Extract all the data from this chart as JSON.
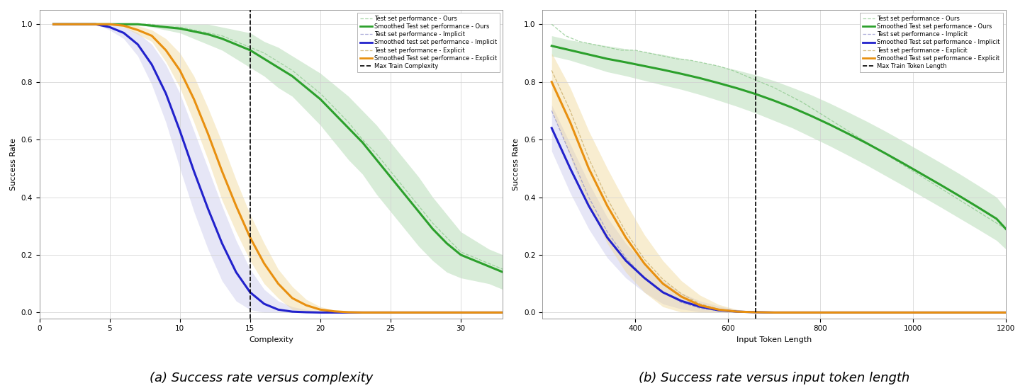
{
  "chart_a": {
    "title": "(a) Success rate versus complexity",
    "xlabel": "Complexity",
    "ylabel": "Success Rate",
    "xlim": [
      0,
      33
    ],
    "ylim": [
      -0.02,
      1.05
    ],
    "xticks": [
      0,
      5,
      10,
      15,
      20,
      25,
      30
    ],
    "yticks": [
      0.0,
      0.2,
      0.4,
      0.6,
      0.8,
      1.0
    ],
    "vline_x": 15,
    "green_smooth_x": [
      1,
      2,
      3,
      4,
      5,
      6,
      7,
      8,
      9,
      10,
      11,
      12,
      13,
      14,
      15,
      16,
      17,
      18,
      19,
      20,
      21,
      22,
      23,
      24,
      25,
      26,
      27,
      28,
      29,
      30,
      31,
      32,
      33
    ],
    "green_smooth_y": [
      1.0,
      1.0,
      1.0,
      1.0,
      1.0,
      1.0,
      1.0,
      0.995,
      0.99,
      0.985,
      0.975,
      0.965,
      0.95,
      0.93,
      0.91,
      0.88,
      0.85,
      0.82,
      0.78,
      0.74,
      0.69,
      0.64,
      0.59,
      0.53,
      0.47,
      0.41,
      0.35,
      0.29,
      0.24,
      0.2,
      0.18,
      0.16,
      0.14
    ],
    "green_raw_x": [
      1,
      2,
      3,
      4,
      5,
      6,
      7,
      8,
      9,
      10,
      11,
      12,
      13,
      14,
      15,
      16,
      17,
      18,
      19,
      20,
      21,
      22,
      23,
      24,
      25,
      26,
      27,
      28,
      29,
      30,
      31,
      32,
      33
    ],
    "green_raw_y": [
      1.0,
      1.0,
      1.0,
      1.0,
      1.0,
      1.0,
      1.0,
      1.0,
      0.99,
      0.99,
      0.98,
      0.97,
      0.96,
      0.94,
      0.92,
      0.9,
      0.87,
      0.84,
      0.8,
      0.76,
      0.71,
      0.66,
      0.6,
      0.55,
      0.49,
      0.43,
      0.37,
      0.31,
      0.26,
      0.21,
      0.19,
      0.17,
      0.15
    ],
    "green_upper": [
      1.0,
      1.0,
      1.0,
      1.0,
      1.0,
      1.0,
      1.0,
      1.0,
      1.0,
      1.0,
      1.0,
      1.0,
      0.99,
      0.98,
      0.97,
      0.94,
      0.92,
      0.89,
      0.86,
      0.83,
      0.79,
      0.75,
      0.7,
      0.65,
      0.59,
      0.53,
      0.47,
      0.4,
      0.34,
      0.28,
      0.25,
      0.22,
      0.2
    ],
    "green_lower": [
      1.0,
      1.0,
      1.0,
      1.0,
      1.0,
      1.0,
      1.0,
      0.99,
      0.98,
      0.97,
      0.95,
      0.93,
      0.91,
      0.88,
      0.85,
      0.82,
      0.78,
      0.75,
      0.7,
      0.65,
      0.59,
      0.53,
      0.48,
      0.41,
      0.35,
      0.29,
      0.23,
      0.18,
      0.14,
      0.12,
      0.11,
      0.1,
      0.08
    ],
    "blue_smooth_x": [
      1,
      2,
      3,
      4,
      5,
      6,
      7,
      8,
      9,
      10,
      11,
      12,
      13,
      14,
      15,
      16,
      17,
      18,
      19,
      20,
      21,
      22,
      23,
      24,
      25,
      26,
      27,
      28,
      29,
      30,
      31,
      32,
      33
    ],
    "blue_smooth_y": [
      1.0,
      1.0,
      1.0,
      1.0,
      0.99,
      0.97,
      0.93,
      0.86,
      0.76,
      0.63,
      0.49,
      0.36,
      0.24,
      0.14,
      0.07,
      0.03,
      0.01,
      0.003,
      0.001,
      0.0,
      0.0,
      0.0,
      0.0,
      0.0,
      0.0,
      0.0,
      0.0,
      0.0,
      0.0,
      0.0,
      0.0,
      0.0,
      0.0
    ],
    "blue_raw_x": [
      1,
      2,
      3,
      4,
      5,
      6,
      7,
      8,
      9,
      10,
      11,
      12,
      13,
      14,
      15,
      16,
      17,
      18,
      19,
      20,
      21,
      22,
      23,
      24,
      25,
      26,
      27,
      28,
      29,
      30,
      31,
      32,
      33
    ],
    "blue_raw_y": [
      1.0,
      1.0,
      1.0,
      1.0,
      0.99,
      0.97,
      0.93,
      0.86,
      0.76,
      0.63,
      0.49,
      0.36,
      0.24,
      0.14,
      0.07,
      0.03,
      0.01,
      0.003,
      0.001,
      0.0,
      0.0,
      0.0,
      0.0,
      0.0,
      0.0,
      0.0,
      0.0,
      0.0,
      0.0,
      0.0,
      0.0,
      0.0,
      0.0
    ],
    "blue_upper": [
      1.0,
      1.0,
      1.0,
      1.0,
      1.0,
      0.99,
      0.97,
      0.93,
      0.86,
      0.76,
      0.63,
      0.5,
      0.37,
      0.25,
      0.15,
      0.08,
      0.04,
      0.02,
      0.01,
      0.003,
      0.001,
      0.0,
      0.0,
      0.0,
      0.0,
      0.0,
      0.0,
      0.0,
      0.0,
      0.0,
      0.0,
      0.0,
      0.0
    ],
    "blue_lower": [
      1.0,
      1.0,
      1.0,
      1.0,
      0.98,
      0.95,
      0.89,
      0.79,
      0.66,
      0.5,
      0.35,
      0.22,
      0.11,
      0.04,
      0.01,
      0.0,
      0.0,
      0.0,
      0.0,
      0.0,
      0.0,
      0.0,
      0.0,
      0.0,
      0.0,
      0.0,
      0.0,
      0.0,
      0.0,
      0.0,
      0.0,
      0.0,
      0.0
    ],
    "orange_smooth_x": [
      1,
      2,
      3,
      4,
      5,
      6,
      7,
      8,
      9,
      10,
      11,
      12,
      13,
      14,
      15,
      16,
      17,
      18,
      19,
      20,
      21,
      22,
      23,
      24,
      25,
      26,
      27,
      28,
      29,
      30,
      31,
      32,
      33
    ],
    "orange_smooth_y": [
      1.0,
      1.0,
      1.0,
      1.0,
      1.0,
      0.995,
      0.98,
      0.96,
      0.91,
      0.84,
      0.74,
      0.62,
      0.49,
      0.37,
      0.26,
      0.17,
      0.1,
      0.05,
      0.025,
      0.01,
      0.004,
      0.001,
      0.0,
      0.0,
      0.0,
      0.0,
      0.0,
      0.0,
      0.0,
      0.0,
      0.0,
      0.0,
      0.0
    ],
    "orange_raw_x": [
      1,
      2,
      3,
      4,
      5,
      6,
      7,
      8,
      9,
      10,
      11,
      12,
      13,
      14,
      15,
      16,
      17,
      18,
      19,
      20,
      21,
      22,
      23,
      24,
      25,
      26,
      27,
      28,
      29,
      30,
      31,
      32,
      33
    ],
    "orange_raw_y": [
      1.0,
      1.0,
      1.0,
      1.0,
      1.0,
      0.995,
      0.98,
      0.96,
      0.91,
      0.84,
      0.74,
      0.62,
      0.49,
      0.37,
      0.26,
      0.17,
      0.1,
      0.05,
      0.025,
      0.01,
      0.004,
      0.001,
      0.0,
      0.0,
      0.0,
      0.0,
      0.0,
      0.0,
      0.0,
      0.0,
      0.0,
      0.0,
      0.0
    ],
    "orange_upper": [
      1.0,
      1.0,
      1.0,
      1.0,
      1.0,
      1.0,
      0.995,
      0.98,
      0.95,
      0.9,
      0.82,
      0.71,
      0.59,
      0.46,
      0.34,
      0.24,
      0.15,
      0.09,
      0.045,
      0.02,
      0.008,
      0.002,
      0.0,
      0.0,
      0.0,
      0.0,
      0.0,
      0.0,
      0.0,
      0.0,
      0.0,
      0.0,
      0.0
    ],
    "orange_lower": [
      1.0,
      1.0,
      1.0,
      1.0,
      1.0,
      0.99,
      0.965,
      0.94,
      0.87,
      0.78,
      0.66,
      0.53,
      0.39,
      0.28,
      0.18,
      0.1,
      0.05,
      0.01,
      0.005,
      0.002,
      0.0,
      0.0,
      0.0,
      0.0,
      0.0,
      0.0,
      0.0,
      0.0,
      0.0,
      0.0,
      0.0,
      0.0,
      0.0
    ]
  },
  "chart_b": {
    "title": "(b) Success rate versus input token length",
    "xlabel": "Input Token Length",
    "ylabel": "Success Rate",
    "xlim": [
      200,
      1200
    ],
    "ylim": [
      -0.02,
      1.05
    ],
    "xticks": [
      400,
      600,
      800,
      1000,
      1200
    ],
    "yticks": [
      0.0,
      0.2,
      0.4,
      0.6,
      0.8,
      1.0
    ],
    "vline_x": 660,
    "green_smooth_x": [
      220,
      260,
      300,
      340,
      380,
      420,
      460,
      500,
      540,
      580,
      620,
      660,
      700,
      740,
      780,
      820,
      860,
      900,
      940,
      980,
      1020,
      1060,
      1100,
      1140,
      1180,
      1200
    ],
    "green_smooth_y": [
      0.925,
      0.91,
      0.895,
      0.88,
      0.868,
      0.855,
      0.842,
      0.828,
      0.813,
      0.796,
      0.778,
      0.758,
      0.735,
      0.71,
      0.682,
      0.652,
      0.62,
      0.587,
      0.552,
      0.516,
      0.479,
      0.442,
      0.404,
      0.365,
      0.325,
      0.29
    ],
    "green_raw_x": [
      220,
      250,
      280,
      310,
      340,
      370,
      400,
      430,
      460,
      490,
      520,
      550,
      580,
      610,
      640,
      670,
      700,
      730,
      760,
      790,
      820,
      850,
      880,
      910,
      940,
      970,
      1000,
      1030,
      1060,
      1090,
      1120,
      1150,
      1180,
      1200
    ],
    "green_raw_y": [
      1.0,
      0.96,
      0.94,
      0.93,
      0.92,
      0.91,
      0.91,
      0.9,
      0.89,
      0.88,
      0.875,
      0.865,
      0.855,
      0.84,
      0.82,
      0.8,
      0.78,
      0.755,
      0.73,
      0.7,
      0.67,
      0.64,
      0.61,
      0.58,
      0.55,
      0.52,
      0.49,
      0.46,
      0.43,
      0.4,
      0.37,
      0.34,
      0.31,
      0.29
    ],
    "green_upper": [
      0.96,
      0.945,
      0.935,
      0.925,
      0.915,
      0.905,
      0.895,
      0.882,
      0.87,
      0.856,
      0.841,
      0.824,
      0.804,
      0.78,
      0.755,
      0.726,
      0.695,
      0.663,
      0.629,
      0.593,
      0.556,
      0.519,
      0.481,
      0.441,
      0.4,
      0.36
    ],
    "green_lower": [
      0.89,
      0.875,
      0.855,
      0.835,
      0.821,
      0.805,
      0.789,
      0.774,
      0.756,
      0.736,
      0.715,
      0.692,
      0.666,
      0.64,
      0.609,
      0.578,
      0.545,
      0.511,
      0.475,
      0.439,
      0.402,
      0.365,
      0.327,
      0.289,
      0.25,
      0.22
    ],
    "blue_smooth_x": [
      220,
      260,
      300,
      340,
      380,
      420,
      460,
      500,
      540,
      580,
      620,
      660,
      700,
      740,
      780,
      820,
      860,
      900,
      940,
      980,
      1020,
      1060,
      1100,
      1140,
      1180,
      1200
    ],
    "blue_smooth_y": [
      0.64,
      0.5,
      0.37,
      0.26,
      0.18,
      0.12,
      0.07,
      0.04,
      0.02,
      0.008,
      0.003,
      0.001,
      0.0,
      0.0,
      0.0,
      0.0,
      0.0,
      0.0,
      0.0,
      0.0,
      0.0,
      0.0,
      0.0,
      0.0,
      0.0,
      0.0
    ],
    "blue_raw_x": [
      220,
      260,
      300,
      340,
      380,
      420,
      460,
      500,
      540,
      580,
      620,
      660,
      700,
      740,
      780
    ],
    "blue_raw_y": [
      0.7,
      0.55,
      0.4,
      0.28,
      0.19,
      0.12,
      0.07,
      0.035,
      0.015,
      0.006,
      0.002,
      0.001,
      0.0,
      0.0,
      0.0
    ],
    "blue_upper": [
      0.72,
      0.585,
      0.45,
      0.33,
      0.24,
      0.17,
      0.11,
      0.068,
      0.04,
      0.022,
      0.01,
      0.004,
      0.001,
      0.0,
      0.0,
      0.0,
      0.0,
      0.0,
      0.0,
      0.0,
      0.0,
      0.0,
      0.0,
      0.0,
      0.0,
      0.0
    ],
    "blue_lower": [
      0.56,
      0.415,
      0.29,
      0.19,
      0.12,
      0.07,
      0.03,
      0.012,
      0.002,
      0.0,
      0.0,
      0.0,
      0.0,
      0.0,
      0.0,
      0.0,
      0.0,
      0.0,
      0.0,
      0.0,
      0.0,
      0.0,
      0.0,
      0.0,
      0.0,
      0.0
    ],
    "orange_smooth_x": [
      220,
      260,
      300,
      340,
      380,
      420,
      460,
      500,
      540,
      580,
      620,
      660,
      700,
      740,
      780,
      820,
      860,
      900,
      940,
      980,
      1020,
      1060,
      1100,
      1140,
      1180,
      1200
    ],
    "orange_smooth_y": [
      0.8,
      0.66,
      0.5,
      0.37,
      0.26,
      0.17,
      0.1,
      0.055,
      0.025,
      0.01,
      0.003,
      0.001,
      0.0,
      0.0,
      0.0,
      0.0,
      0.0,
      0.0,
      0.0,
      0.0,
      0.0,
      0.0,
      0.0,
      0.0,
      0.0,
      0.0
    ],
    "orange_raw_x": [
      220,
      260,
      300,
      340,
      380,
      420,
      460,
      500,
      540,
      580,
      620,
      660,
      700,
      740,
      780
    ],
    "orange_raw_y": [
      0.84,
      0.7,
      0.535,
      0.395,
      0.28,
      0.185,
      0.115,
      0.065,
      0.03,
      0.012,
      0.004,
      0.001,
      0.0,
      0.0,
      0.0
    ],
    "orange_upper": [
      0.9,
      0.78,
      0.63,
      0.5,
      0.38,
      0.27,
      0.18,
      0.11,
      0.06,
      0.028,
      0.01,
      0.003,
      0.001,
      0.0,
      0.0,
      0.0,
      0.0,
      0.0,
      0.0,
      0.0,
      0.0,
      0.0,
      0.0,
      0.0,
      0.0,
      0.0
    ],
    "orange_lower": [
      0.7,
      0.54,
      0.37,
      0.24,
      0.14,
      0.07,
      0.02,
      0.001,
      0.0,
      0.0,
      0.0,
      0.0,
      0.0,
      0.0,
      0.0,
      0.0,
      0.0,
      0.0,
      0.0,
      0.0,
      0.0,
      0.0,
      0.0,
      0.0,
      0.0,
      0.0
    ]
  },
  "colors": {
    "green": "#2ca02c",
    "green_fill": "#b8ddb8",
    "green_raw": "#8bc88b",
    "blue": "#2222cc",
    "blue_fill": "#c8c8ec",
    "blue_raw": "#9090cc",
    "orange": "#e89010",
    "orange_fill": "#f0d898",
    "orange_raw": "#c8a860"
  },
  "legend_labels_a": [
    "Test set performance - Ours",
    "Smoothed Test set performance - Ours",
    "Test set performance - Implicit",
    "Smoothed test set performance - Implicit",
    "Test set performance - Explicit",
    "Smoothed Test set performance - Explicit",
    "Max Train Complexity"
  ],
  "legend_labels_b": [
    "Test set performance - Ours",
    "Smoothed Test set performance - Ours",
    "Test set performance - Implicit",
    "Smoothed Test set performance - Implicit",
    "Test set performance - Explicit",
    "Smoothed Test set performance - Explicit",
    "Max Train Token Length"
  ],
  "caption_a": "(a) Success rate versus complexity",
  "caption_b": "(b) Success rate versus input token length"
}
